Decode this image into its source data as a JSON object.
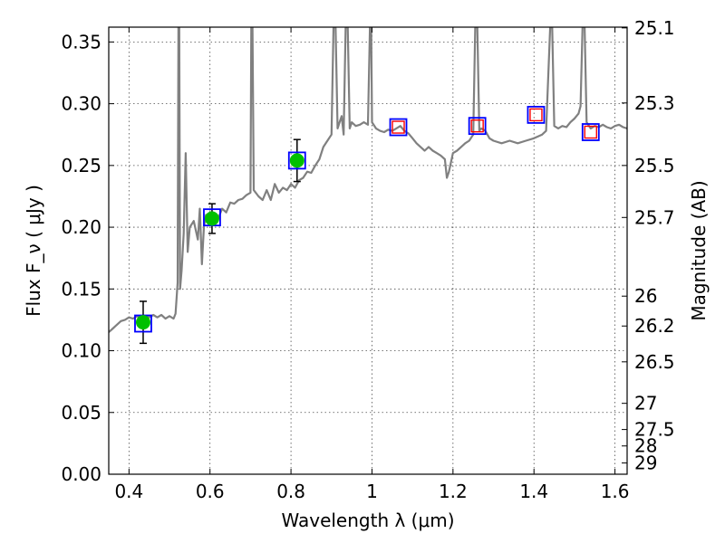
{
  "chart_data": {
    "type": "scatter",
    "xlabel": "Wavelength  λ (μm)",
    "ylabel": "Flux  F_ν  ( μJy )",
    "y2label": "Magnitude (AB)",
    "xlim": [
      0.35,
      1.63
    ],
    "ylim": [
      0.0,
      0.362
    ],
    "grid": true,
    "x_ticks": [
      {
        "value": 0.4,
        "label": "0.4"
      },
      {
        "value": 0.6,
        "label": "0.6"
      },
      {
        "value": 0.8,
        "label": "0.8"
      },
      {
        "value": 1.0,
        "label": "1"
      },
      {
        "value": 1.2,
        "label": "1.2"
      },
      {
        "value": 1.4,
        "label": "1.4"
      },
      {
        "value": 1.6,
        "label": "1.6"
      }
    ],
    "y_ticks": [
      {
        "value": 0.0,
        "label": "0.00"
      },
      {
        "value": 0.05,
        "label": "0.05"
      },
      {
        "value": 0.1,
        "label": "0.10"
      },
      {
        "value": 0.15,
        "label": "0.15"
      },
      {
        "value": 0.2,
        "label": "0.20"
      },
      {
        "value": 0.25,
        "label": "0.25"
      },
      {
        "value": 0.3,
        "label": "0.30"
      },
      {
        "value": 0.35,
        "label": "0.35"
      }
    ],
    "mag_ticks": [
      {
        "flux": 0.3614,
        "label": "25.1"
      },
      {
        "flux": 0.3006,
        "label": "25.3"
      },
      {
        "flux": 0.25,
        "label": "25.5"
      },
      {
        "flux": 0.2079,
        "label": "25.7"
      },
      {
        "flux": 0.1442,
        "label": "26"
      },
      {
        "flux": 0.12,
        "label": "26.2"
      },
      {
        "flux": 0.091,
        "label": "26.5"
      },
      {
        "flux": 0.0574,
        "label": "27"
      },
      {
        "flux": 0.0362,
        "label": "27.5"
      },
      {
        "flux": 0.0229,
        "label": "28"
      },
      {
        "flux": 0.0091,
        "label": "29"
      }
    ],
    "colors": {
      "spectrum": "#808080",
      "observed_fill": "#00c000",
      "model_box": "#0000ff",
      "nondetection_box": "#ff0000",
      "errorbar": "#000000"
    },
    "series": [
      {
        "type": "line",
        "values": [
          [
            0.35,
            0.115
          ],
          [
            0.36,
            0.118
          ],
          [
            0.37,
            0.121
          ],
          [
            0.38,
            0.124
          ],
          [
            0.39,
            0.125
          ],
          [
            0.4,
            0.127
          ],
          [
            0.41,
            0.126
          ],
          [
            0.42,
            0.128
          ],
          [
            0.43,
            0.126
          ],
          [
            0.44,
            0.128
          ],
          [
            0.45,
            0.127
          ],
          [
            0.46,
            0.129
          ],
          [
            0.47,
            0.127
          ],
          [
            0.48,
            0.129
          ],
          [
            0.49,
            0.126
          ],
          [
            0.5,
            0.128
          ],
          [
            0.51,
            0.126
          ],
          [
            0.515,
            0.13
          ],
          [
            0.52,
            0.155
          ],
          [
            0.522,
            0.362
          ],
          [
            0.524,
            0.362
          ],
          [
            0.526,
            0.15
          ],
          [
            0.53,
            0.165
          ],
          [
            0.535,
            0.195
          ],
          [
            0.54,
            0.26
          ],
          [
            0.545,
            0.18
          ],
          [
            0.55,
            0.2
          ],
          [
            0.56,
            0.205
          ],
          [
            0.57,
            0.19
          ],
          [
            0.575,
            0.215
          ],
          [
            0.58,
            0.17
          ],
          [
            0.585,
            0.2
          ],
          [
            0.59,
            0.21
          ],
          [
            0.6,
            0.205
          ],
          [
            0.61,
            0.21
          ],
          [
            0.62,
            0.207
          ],
          [
            0.63,
            0.215
          ],
          [
            0.64,
            0.212
          ],
          [
            0.65,
            0.22
          ],
          [
            0.66,
            0.219
          ],
          [
            0.67,
            0.222
          ],
          [
            0.68,
            0.223
          ],
          [
            0.69,
            0.226
          ],
          [
            0.7,
            0.228
          ],
          [
            0.702,
            0.362
          ],
          [
            0.705,
            0.362
          ],
          [
            0.708,
            0.23
          ],
          [
            0.72,
            0.225
          ],
          [
            0.73,
            0.222
          ],
          [
            0.74,
            0.23
          ],
          [
            0.75,
            0.222
          ],
          [
            0.76,
            0.235
          ],
          [
            0.77,
            0.228
          ],
          [
            0.78,
            0.232
          ],
          [
            0.79,
            0.23
          ],
          [
            0.8,
            0.235
          ],
          [
            0.81,
            0.232
          ],
          [
            0.82,
            0.238
          ],
          [
            0.83,
            0.24
          ],
          [
            0.84,
            0.245
          ],
          [
            0.85,
            0.244
          ],
          [
            0.86,
            0.25
          ],
          [
            0.87,
            0.255
          ],
          [
            0.88,
            0.265
          ],
          [
            0.89,
            0.27
          ],
          [
            0.9,
            0.275
          ],
          [
            0.905,
            0.362
          ],
          [
            0.91,
            0.362
          ],
          [
            0.915,
            0.28
          ],
          [
            0.92,
            0.285
          ],
          [
            0.925,
            0.29
          ],
          [
            0.93,
            0.275
          ],
          [
            0.935,
            0.362
          ],
          [
            0.94,
            0.362
          ],
          [
            0.945,
            0.28
          ],
          [
            0.95,
            0.285
          ],
          [
            0.96,
            0.282
          ],
          [
            0.97,
            0.283
          ],
          [
            0.98,
            0.285
          ],
          [
            0.99,
            0.283
          ],
          [
            0.995,
            0.362
          ],
          [
            0.998,
            0.362
          ],
          [
            1.0,
            0.285
          ],
          [
            1.01,
            0.28
          ],
          [
            1.02,
            0.278
          ],
          [
            1.03,
            0.277
          ],
          [
            1.04,
            0.279
          ],
          [
            1.05,
            0.278
          ],
          [
            1.06,
            0.28
          ],
          [
            1.07,
            0.282
          ],
          [
            1.08,
            0.278
          ],
          [
            1.09,
            0.276
          ],
          [
            1.1,
            0.272
          ],
          [
            1.11,
            0.268
          ],
          [
            1.12,
            0.265
          ],
          [
            1.13,
            0.262
          ],
          [
            1.14,
            0.265
          ],
          [
            1.15,
            0.262
          ],
          [
            1.16,
            0.26
          ],
          [
            1.17,
            0.258
          ],
          [
            1.18,
            0.255
          ],
          [
            1.185,
            0.24
          ],
          [
            1.19,
            0.245
          ],
          [
            1.2,
            0.26
          ],
          [
            1.21,
            0.262
          ],
          [
            1.22,
            0.265
          ],
          [
            1.23,
            0.268
          ],
          [
            1.24,
            0.27
          ],
          [
            1.25,
            0.275
          ],
          [
            1.255,
            0.362
          ],
          [
            1.26,
            0.362
          ],
          [
            1.265,
            0.278
          ],
          [
            1.27,
            0.28
          ],
          [
            1.28,
            0.278
          ],
          [
            1.29,
            0.272
          ],
          [
            1.3,
            0.27
          ],
          [
            1.32,
            0.268
          ],
          [
            1.34,
            0.27
          ],
          [
            1.36,
            0.268
          ],
          [
            1.38,
            0.27
          ],
          [
            1.4,
            0.272
          ],
          [
            1.42,
            0.275
          ],
          [
            1.43,
            0.278
          ],
          [
            1.44,
            0.362
          ],
          [
            1.445,
            0.362
          ],
          [
            1.45,
            0.282
          ],
          [
            1.46,
            0.28
          ],
          [
            1.47,
            0.282
          ],
          [
            1.48,
            0.281
          ],
          [
            1.49,
            0.285
          ],
          [
            1.5,
            0.288
          ],
          [
            1.51,
            0.292
          ],
          [
            1.515,
            0.298
          ],
          [
            1.52,
            0.362
          ],
          [
            1.525,
            0.362
          ],
          [
            1.53,
            0.285
          ],
          [
            1.54,
            0.28
          ],
          [
            1.55,
            0.282
          ],
          [
            1.56,
            0.281
          ],
          [
            1.57,
            0.283
          ],
          [
            1.58,
            0.281
          ],
          [
            1.59,
            0.28
          ],
          [
            1.6,
            0.282
          ],
          [
            1.61,
            0.283
          ],
          [
            1.62,
            0.281
          ],
          [
            1.63,
            0.28
          ]
        ]
      },
      {
        "type": "scatter",
        "marker": "circle",
        "x": [
          0.435,
          0.605,
          0.815
        ],
        "values": [
          0.123,
          0.207,
          0.254
        ],
        "yerr": [
          0.017,
          0.012,
          0.017
        ]
      },
      {
        "type": "scatter",
        "marker": "square",
        "x": [
          0.435,
          0.605,
          0.815,
          1.065,
          1.26,
          1.405,
          1.54
        ],
        "values": [
          0.122,
          0.208,
          0.254,
          0.281,
          0.282,
          0.291,
          0.277
        ]
      },
      {
        "type": "scatter",
        "marker": "square",
        "x": [
          1.065,
          1.26,
          1.405,
          1.54
        ],
        "values": [
          0.281,
          0.282,
          0.291,
          0.277
        ]
      }
    ]
  }
}
